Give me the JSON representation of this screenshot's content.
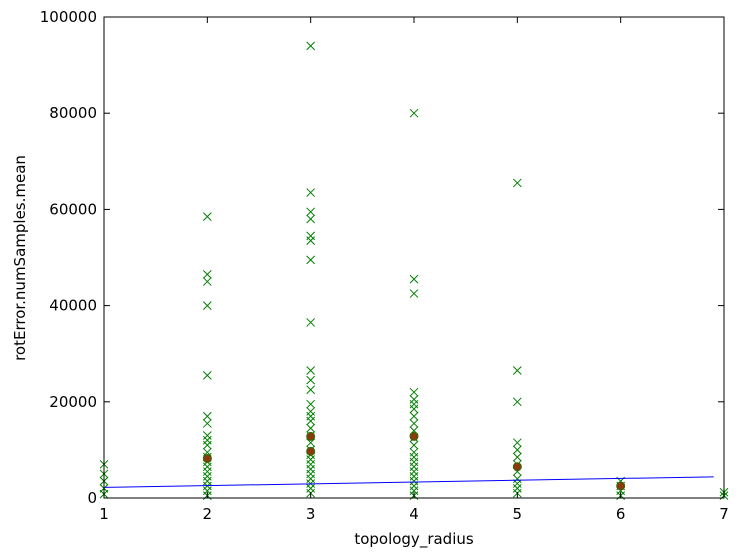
{
  "chart_data": {
    "type": "scatter",
    "title": "",
    "xlabel": "topology_radius",
    "ylabel": "rotError.numSamples.mean",
    "xlim": [
      1,
      7
    ],
    "ylim": [
      0,
      100000
    ],
    "xticks": [
      "1",
      "2",
      "3",
      "4",
      "5",
      "6",
      "7"
    ],
    "yticks": [
      "0",
      "20000",
      "40000",
      "60000",
      "80000",
      "100000"
    ],
    "grid": false,
    "legend": "none",
    "series": [
      {
        "marker": "x",
        "color": "#008000",
        "points": [
          {
            "x": 1,
            "y": 7000
          },
          {
            "x": 1,
            "y": 5000
          },
          {
            "x": 1,
            "y": 3500
          },
          {
            "x": 1,
            "y": 2000
          },
          {
            "x": 1,
            "y": 800
          },
          {
            "x": 2,
            "y": 58500
          },
          {
            "x": 2,
            "y": 46500
          },
          {
            "x": 2,
            "y": 45000
          },
          {
            "x": 2,
            "y": 40000
          },
          {
            "x": 2,
            "y": 25500
          },
          {
            "x": 2,
            "y": 17000
          },
          {
            "x": 2,
            "y": 15500
          },
          {
            "x": 2,
            "y": 13000
          },
          {
            "x": 2,
            "y": 12000
          },
          {
            "x": 2,
            "y": 11000
          },
          {
            "x": 2,
            "y": 9500
          },
          {
            "x": 2,
            "y": 8500
          },
          {
            "x": 2,
            "y": 7500
          },
          {
            "x": 2,
            "y": 6500
          },
          {
            "x": 2,
            "y": 5500
          },
          {
            "x": 2,
            "y": 4500
          },
          {
            "x": 2,
            "y": 3500
          },
          {
            "x": 2,
            "y": 2500
          },
          {
            "x": 2,
            "y": 1500
          },
          {
            "x": 2,
            "y": 500
          },
          {
            "x": 3,
            "y": 94000
          },
          {
            "x": 3,
            "y": 63500
          },
          {
            "x": 3,
            "y": 59500
          },
          {
            "x": 3,
            "y": 58000
          },
          {
            "x": 3,
            "y": 54500
          },
          {
            "x": 3,
            "y": 53500
          },
          {
            "x": 3,
            "y": 49500
          },
          {
            "x": 3,
            "y": 36500
          },
          {
            "x": 3,
            "y": 26500
          },
          {
            "x": 3,
            "y": 24500
          },
          {
            "x": 3,
            "y": 22500
          },
          {
            "x": 3,
            "y": 19500
          },
          {
            "x": 3,
            "y": 18000
          },
          {
            "x": 3,
            "y": 17000
          },
          {
            "x": 3,
            "y": 16000
          },
          {
            "x": 3,
            "y": 14500
          },
          {
            "x": 3,
            "y": 13000
          },
          {
            "x": 3,
            "y": 11500
          },
          {
            "x": 3,
            "y": 10000
          },
          {
            "x": 3,
            "y": 9000
          },
          {
            "x": 3,
            "y": 8000
          },
          {
            "x": 3,
            "y": 7000
          },
          {
            "x": 3,
            "y": 6000
          },
          {
            "x": 3,
            "y": 5000
          },
          {
            "x": 3,
            "y": 4000
          },
          {
            "x": 3,
            "y": 3000
          },
          {
            "x": 3,
            "y": 2000
          },
          {
            "x": 3,
            "y": 1000
          },
          {
            "x": 4,
            "y": 80000
          },
          {
            "x": 4,
            "y": 45500
          },
          {
            "x": 4,
            "y": 42500
          },
          {
            "x": 4,
            "y": 22000
          },
          {
            "x": 4,
            "y": 20500
          },
          {
            "x": 4,
            "y": 19500
          },
          {
            "x": 4,
            "y": 18500
          },
          {
            "x": 4,
            "y": 17000
          },
          {
            "x": 4,
            "y": 15500
          },
          {
            "x": 4,
            "y": 14000
          },
          {
            "x": 4,
            "y": 12500
          },
          {
            "x": 4,
            "y": 11000
          },
          {
            "x": 4,
            "y": 9500
          },
          {
            "x": 4,
            "y": 8500
          },
          {
            "x": 4,
            "y": 7500
          },
          {
            "x": 4,
            "y": 6500
          },
          {
            "x": 4,
            "y": 5500
          },
          {
            "x": 4,
            "y": 4500
          },
          {
            "x": 4,
            "y": 3500
          },
          {
            "x": 4,
            "y": 2500
          },
          {
            "x": 4,
            "y": 1500
          },
          {
            "x": 4,
            "y": 500
          },
          {
            "x": 5,
            "y": 65500
          },
          {
            "x": 5,
            "y": 26500
          },
          {
            "x": 5,
            "y": 20000
          },
          {
            "x": 5,
            "y": 11500
          },
          {
            "x": 5,
            "y": 10000
          },
          {
            "x": 5,
            "y": 8500
          },
          {
            "x": 5,
            "y": 7000
          },
          {
            "x": 5,
            "y": 5500
          },
          {
            "x": 5,
            "y": 4000
          },
          {
            "x": 5,
            "y": 3000
          },
          {
            "x": 5,
            "y": 2000
          },
          {
            "x": 5,
            "y": 1000
          },
          {
            "x": 6,
            "y": 3500
          },
          {
            "x": 6,
            "y": 2500
          },
          {
            "x": 6,
            "y": 1500
          },
          {
            "x": 6,
            "y": 500
          },
          {
            "x": 7,
            "y": 1200
          },
          {
            "x": 7,
            "y": 500
          }
        ]
      },
      {
        "marker": "o",
        "color": "#8b3a0e",
        "points": [
          {
            "x": 2,
            "y": 8200
          },
          {
            "x": 3,
            "y": 12800
          },
          {
            "x": 3,
            "y": 9700
          },
          {
            "x": 4,
            "y": 12800
          },
          {
            "x": 5,
            "y": 6500
          },
          {
            "x": 6,
            "y": 2500
          }
        ]
      },
      {
        "marker": "line",
        "color": "#0000ff",
        "points": [
          {
            "x": 1,
            "y": 2200
          },
          {
            "x": 6.9,
            "y": 4400
          }
        ]
      }
    ]
  }
}
